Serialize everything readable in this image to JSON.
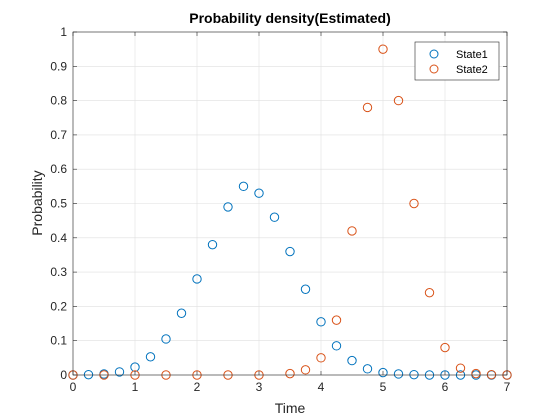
{
  "chart_data": {
    "type": "scatter",
    "title": "Probability density(Estimated)",
    "xlabel": "Time",
    "ylabel": "Probability",
    "xlim": [
      0,
      7
    ],
    "ylim": [
      0,
      1
    ],
    "xticks": [
      "0",
      "1",
      "2",
      "3",
      "4",
      "5",
      "6",
      "7"
    ],
    "yticks": [
      "0",
      "0.1",
      "0.2",
      "0.3",
      "0.4",
      "0.5",
      "0.6",
      "0.7",
      "0.8",
      "0.9",
      "1"
    ],
    "grid": true,
    "legend": "top-right",
    "marker": "open-circle",
    "series": [
      {
        "name": "State1",
        "color": "#0072BD",
        "x": [
          0,
          0.25,
          0.5,
          0.75,
          1,
          1.25,
          1.5,
          1.75,
          2,
          2.25,
          2.5,
          2.75,
          3,
          3.25,
          3.5,
          3.75,
          4,
          4.25,
          4.5,
          4.75,
          5,
          5.25,
          5.5,
          5.75,
          6,
          6.25,
          6.5,
          6.75,
          7
        ],
        "y": [
          0.0,
          0.001,
          0.003,
          0.009,
          0.023,
          0.053,
          0.105,
          0.18,
          0.28,
          0.38,
          0.49,
          0.55,
          0.53,
          0.46,
          0.36,
          0.25,
          0.155,
          0.085,
          0.042,
          0.018,
          0.007,
          0.003,
          0.001,
          0.0,
          0.0,
          0.0,
          0.0,
          0.0,
          0.0
        ]
      },
      {
        "name": "State2",
        "color": "#D95319",
        "x": [
          0,
          0.5,
          1,
          1.5,
          2,
          2.5,
          3,
          3.5,
          3.75,
          4,
          4.25,
          4.5,
          4.75,
          5,
          5.25,
          5.5,
          5.75,
          6,
          6.25,
          6.5,
          6.75,
          7
        ],
        "y": [
          0.0,
          0.0,
          0.0,
          0.0,
          0.0,
          0.0,
          0.0,
          0.004,
          0.015,
          0.05,
          0.16,
          0.42,
          0.78,
          0.95,
          0.8,
          0.5,
          0.24,
          0.08,
          0.02,
          0.004,
          0.001,
          0.0
        ]
      }
    ]
  }
}
